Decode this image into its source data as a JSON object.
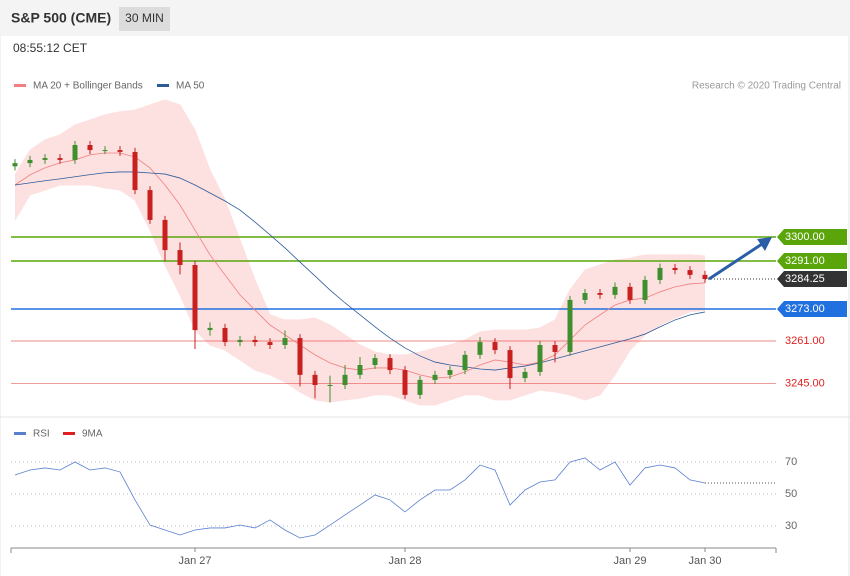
{
  "header": {
    "title": "S&P 500 (CME)",
    "interval": "30 MIN",
    "time": "08:55:12 CET"
  },
  "chart_data": [
    {
      "type": "candlestick",
      "source": "Research © 2020 Trading Central",
      "categories": [
        null,
        null,
        null,
        null,
        null,
        null,
        null,
        null,
        null,
        null,
        null,
        null,
        "Jan 27",
        null,
        null,
        null,
        null,
        null,
        null,
        null,
        null,
        null,
        null,
        null,
        null,
        null,
        "Jan 28",
        null,
        null,
        null,
        null,
        null,
        null,
        null,
        null,
        null,
        null,
        null,
        null,
        null,
        null,
        "Jan 29",
        null,
        null,
        null,
        null,
        "Jan 30"
      ],
      "open": [
        3326.5,
        3327.7,
        3328.9,
        3329.6,
        3328.9,
        3334.5,
        3332.6,
        3332.6,
        3331.9,
        3317.6,
        3306.4,
        3295.1,
        3289.5,
        3265.1,
        3265.9,
        3260.6,
        3261.4,
        3260.6,
        3259.5,
        3262.1,
        3248.3,
        3244.5,
        3244.5,
        3248.3,
        3252.0,
        3254.6,
        3250.1,
        3240.8,
        3246.4,
        3248.3,
        3250.1,
        3255.8,
        3260.6,
        3257.6,
        3247.1,
        3249.4,
        3259.5,
        3256.9,
        3276.4,
        3279.0,
        3278.3,
        3281.3,
        3276.4,
        3283.9,
        3288.4,
        3287.6,
        3285.8
      ],
      "high": [
        3329.2,
        3330.4,
        3331.1,
        3331.1,
        3336.0,
        3336.0,
        3334.1,
        3334.1,
        3333.4,
        3319.1,
        3307.9,
        3298.0,
        3291.0,
        3268.0,
        3267.4,
        3262.9,
        3262.9,
        3262.1,
        3265.0,
        3263.6,
        3249.8,
        3248.0,
        3252.0,
        3255.0,
        3256.1,
        3256.1,
        3251.6,
        3247.9,
        3249.8,
        3251.6,
        3257.3,
        3262.5,
        3262.1,
        3259.1,
        3250.9,
        3261.0,
        3261.0,
        3277.9,
        3280.5,
        3280.5,
        3283.0,
        3282.8,
        3285.4,
        3290.0,
        3289.9,
        3289.1,
        3287.3
      ],
      "low": [
        3325.0,
        3326.2,
        3327.4,
        3327.4,
        3327.4,
        3331.1,
        3331.1,
        3330.4,
        3316.1,
        3304.9,
        3291.0,
        3286.0,
        3258.0,
        3263.0,
        3259.1,
        3259.1,
        3259.1,
        3258.0,
        3258.0,
        3244.0,
        3239.5,
        3238.0,
        3243.0,
        3246.8,
        3250.5,
        3248.6,
        3239.3,
        3239.3,
        3244.9,
        3246.8,
        3248.6,
        3254.3,
        3256.1,
        3243.0,
        3245.6,
        3247.9,
        3253.0,
        3255.4,
        3274.9,
        3276.8,
        3276.8,
        3274.9,
        3274.9,
        3282.4,
        3286.1,
        3284.3,
        3282.8
      ],
      "close": [
        3327.7,
        3328.9,
        3329.6,
        3328.9,
        3334.5,
        3332.6,
        3332.6,
        3331.9,
        3317.6,
        3306.4,
        3295.1,
        3289.5,
        3265.1,
        3265.9,
        3260.6,
        3261.4,
        3260.6,
        3259.5,
        3262.1,
        3248.3,
        3244.5,
        3244.5,
        3248.3,
        3252.0,
        3254.6,
        3250.1,
        3240.8,
        3246.4,
        3248.3,
        3250.1,
        3255.8,
        3260.6,
        3257.6,
        3247.1,
        3249.4,
        3259.5,
        3256.9,
        3276.4,
        3279.0,
        3278.3,
        3281.3,
        3276.4,
        3283.9,
        3288.4,
        3287.6,
        3285.8,
        3284.25
      ],
      "up_color": "#3f8f2f",
      "down_color": "#c8201e",
      "ylim": [
        3233,
        3352
      ],
      "series": [
        {
          "name": "MA 20 + Bollinger Bands",
          "color": "#f08080",
          "values": [
            3319.5,
            3323.3,
            3325.9,
            3327.8,
            3328.9,
            3330.8,
            3331.5,
            3331.5,
            3330.0,
            3325.9,
            3319.5,
            3312.0,
            3302.6,
            3293.3,
            3285.8,
            3278.3,
            3272.6,
            3267.0,
            3263.3,
            3259.5,
            3255.8,
            3252.8,
            3250.9,
            3250.1,
            3250.9,
            3250.9,
            3250.1,
            3248.3,
            3247.1,
            3247.5,
            3249.4,
            3252.0,
            3253.9,
            3253.1,
            3252.0,
            3253.1,
            3255.8,
            3261.4,
            3267.0,
            3270.8,
            3274.5,
            3276.4,
            3277.1,
            3279.4,
            3281.3,
            3282.4,
            3282.8
          ],
          "upper": [
            3323.3,
            3332.6,
            3336.4,
            3338.3,
            3342.0,
            3343.9,
            3345.8,
            3346.9,
            3347.6,
            3349.5,
            3351.4,
            3349.5,
            3340.1,
            3325.1,
            3313.9,
            3298.9,
            3283.9,
            3270.8,
            3268.9,
            3268.9,
            3269.6,
            3267.0,
            3263.3,
            3259.5,
            3256.9,
            3255.8,
            3255.8,
            3256.9,
            3258.4,
            3259.5,
            3261.4,
            3264.4,
            3265.1,
            3265.1,
            3265.1,
            3265.9,
            3268.9,
            3280.1,
            3287.6,
            3289.5,
            3291.4,
            3292.1,
            3293.3,
            3293.3,
            3293.3,
            3293.3,
            3292.9
          ],
          "lower": [
            3306.4,
            3315.8,
            3317.6,
            3319.5,
            3319.5,
            3319.5,
            3318.4,
            3317.6,
            3313.9,
            3302.6,
            3289.5,
            3278.3,
            3265.1,
            3259.5,
            3257.6,
            3253.9,
            3250.1,
            3248.3,
            3245.6,
            3241.9,
            3238.9,
            3238.1,
            3238.9,
            3239.6,
            3240.8,
            3240.8,
            3238.9,
            3237.0,
            3237.0,
            3238.9,
            3240.8,
            3240.8,
            3238.9,
            3238.9,
            3240.8,
            3242.6,
            3241.9,
            3240.8,
            3238.9,
            3240.8,
            3248.3,
            3257.6,
            3263.3,
            3267.0,
            3269.6,
            3271.9,
            3272.6
          ],
          "band_color": "#fde0e0"
        },
        {
          "name": "MA 50",
          "color": "#2d5b9a",
          "values": [
            3319.5,
            3320.3,
            3321.1,
            3321.8,
            3322.6,
            3323.4,
            3324.1,
            3324.4,
            3324.4,
            3324.0,
            3323.6,
            3322.1,
            3319.5,
            3316.5,
            3313.5,
            3310.1,
            3305.6,
            3300.8,
            3295.9,
            3290.6,
            3285.4,
            3280.1,
            3275.3,
            3270.8,
            3266.3,
            3262.1,
            3258.4,
            3255.4,
            3253.1,
            3252.0,
            3251.3,
            3250.5,
            3250.1,
            3250.9,
            3251.6,
            3252.8,
            3254.3,
            3255.8,
            3257.3,
            3258.8,
            3260.3,
            3261.8,
            3263.6,
            3266.3,
            3268.9,
            3270.8,
            3271.9
          ]
        }
      ],
      "levels": [
        {
          "value": 3300,
          "label": "3300.00",
          "color": "#5aa60a",
          "line": "solid",
          "tag": true
        },
        {
          "value": 3291,
          "label": "3291.00",
          "color": "#5aa60a",
          "line": "solid",
          "tag": true
        },
        {
          "value": 3284.25,
          "label": "3284.25",
          "color": "#333333",
          "line": "dotted",
          "tag": true
        },
        {
          "value": 3273,
          "label": "3273.00",
          "color": "#2070e0",
          "line": "solid",
          "tag": true
        },
        {
          "value": 3261,
          "label": "3261.00",
          "color": "#e02020",
          "line": "solid",
          "tag": false
        },
        {
          "value": 3245,
          "label": "3245.00",
          "color": "#e02020",
          "line": "solid",
          "tag": false
        }
      ]
    },
    {
      "type": "line",
      "series": [
        {
          "name": "RSI",
          "color": "#5a7fd0",
          "values": [
            61.9,
            65,
            66.3,
            65,
            70,
            65,
            66.3,
            63.8,
            46.3,
            30.6,
            27.5,
            24.4,
            27.5,
            28.8,
            28.8,
            30.6,
            28.8,
            33.8,
            27.5,
            22.5,
            24.4,
            30.6,
            36.9,
            43.1,
            49.4,
            46.3,
            38.8,
            46.3,
            52.5,
            52.5,
            58.8,
            68.1,
            65,
            43.1,
            52.5,
            57.5,
            58.8,
            70,
            72.5,
            65,
            70,
            55.6,
            66.3,
            68.1,
            66.3,
            58.8,
            56.9
          ]
        },
        {
          "name": "9MA",
          "color": "#e02020"
        }
      ],
      "ylim": [
        16.25,
        83.75
      ],
      "yticks": [
        70,
        50,
        30
      ],
      "grid": true
    }
  ]
}
